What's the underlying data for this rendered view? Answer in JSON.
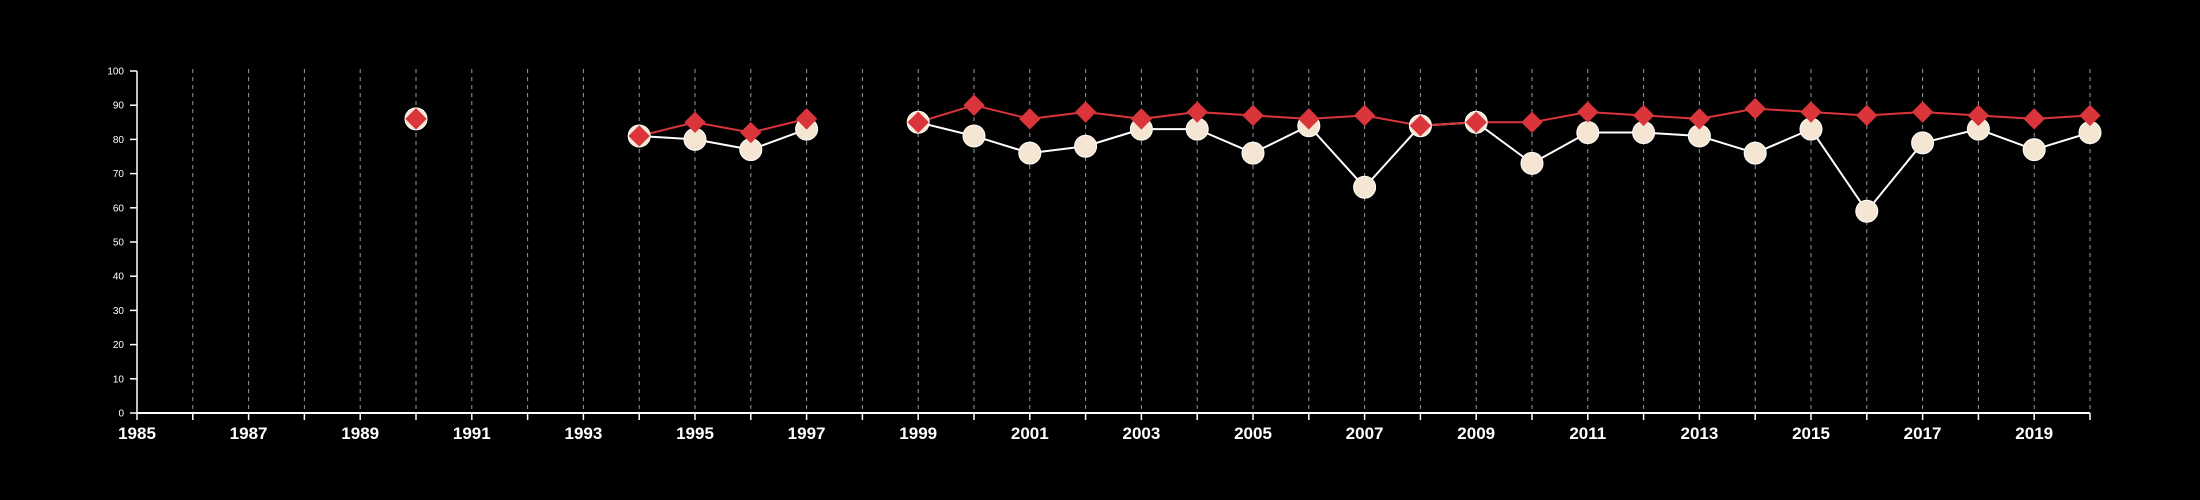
{
  "chart_data": {
    "type": "line",
    "xlim": [
      1985,
      2020
    ],
    "ylim": [
      0,
      100
    ],
    "x_ticks": [
      "1985",
      "1987",
      "1989",
      "1991",
      "1993",
      "1995",
      "1997",
      "1999",
      "2001",
      "2003",
      "2005",
      "2007",
      "2009",
      "2011",
      "2013",
      "2015",
      "2017",
      "2019"
    ],
    "y_ticks": [
      "0",
      "10",
      "20",
      "30",
      "40",
      "50",
      "60",
      "70",
      "80",
      "90",
      "100"
    ],
    "grid": "vertical dashed lines at each year",
    "series": [
      {
        "marker": "circle",
        "color": "#f5e6d3",
        "line_color": "#ffffff",
        "points": [
          [
            1990,
            86
          ],
          [
            1994,
            81
          ],
          [
            1995,
            80
          ],
          [
            1996,
            77
          ],
          [
            1997,
            83
          ],
          [
            1999,
            85
          ],
          [
            2000,
            81
          ],
          [
            2001,
            76
          ],
          [
            2002,
            78
          ],
          [
            2003,
            83
          ],
          [
            2004,
            83
          ],
          [
            2005,
            76
          ],
          [
            2006,
            84
          ],
          [
            2007,
            66
          ],
          [
            2008,
            84
          ],
          [
            2009,
            85
          ],
          [
            2010,
            73
          ],
          [
            2011,
            82
          ],
          [
            2012,
            82
          ],
          [
            2013,
            81
          ],
          [
            2014,
            76
          ],
          [
            2015,
            83
          ],
          [
            2016,
            59
          ],
          [
            2017,
            79
          ],
          [
            2018,
            83
          ],
          [
            2019,
            77
          ],
          [
            2020,
            82
          ]
        ]
      },
      {
        "marker": "diamond",
        "color": "#d9353b",
        "line_color": "#d9353b",
        "points": [
          [
            1990,
            86
          ],
          [
            1994,
            81
          ],
          [
            1995,
            85
          ],
          [
            1996,
            82
          ],
          [
            1997,
            86
          ],
          [
            1999,
            85
          ],
          [
            2000,
            90
          ],
          [
            2001,
            86
          ],
          [
            2002,
            88
          ],
          [
            2003,
            86
          ],
          [
            2004,
            88
          ],
          [
            2005,
            87
          ],
          [
            2006,
            86
          ],
          [
            2007,
            87
          ],
          [
            2008,
            84
          ],
          [
            2009,
            85
          ],
          [
            2010,
            85
          ],
          [
            2011,
            88
          ],
          [
            2012,
            87
          ],
          [
            2013,
            86
          ],
          [
            2014,
            89
          ],
          [
            2015,
            88
          ],
          [
            2016,
            87
          ],
          [
            2017,
            88
          ],
          [
            2018,
            87
          ],
          [
            2019,
            86
          ],
          [
            2020,
            87
          ]
        ]
      }
    ]
  }
}
